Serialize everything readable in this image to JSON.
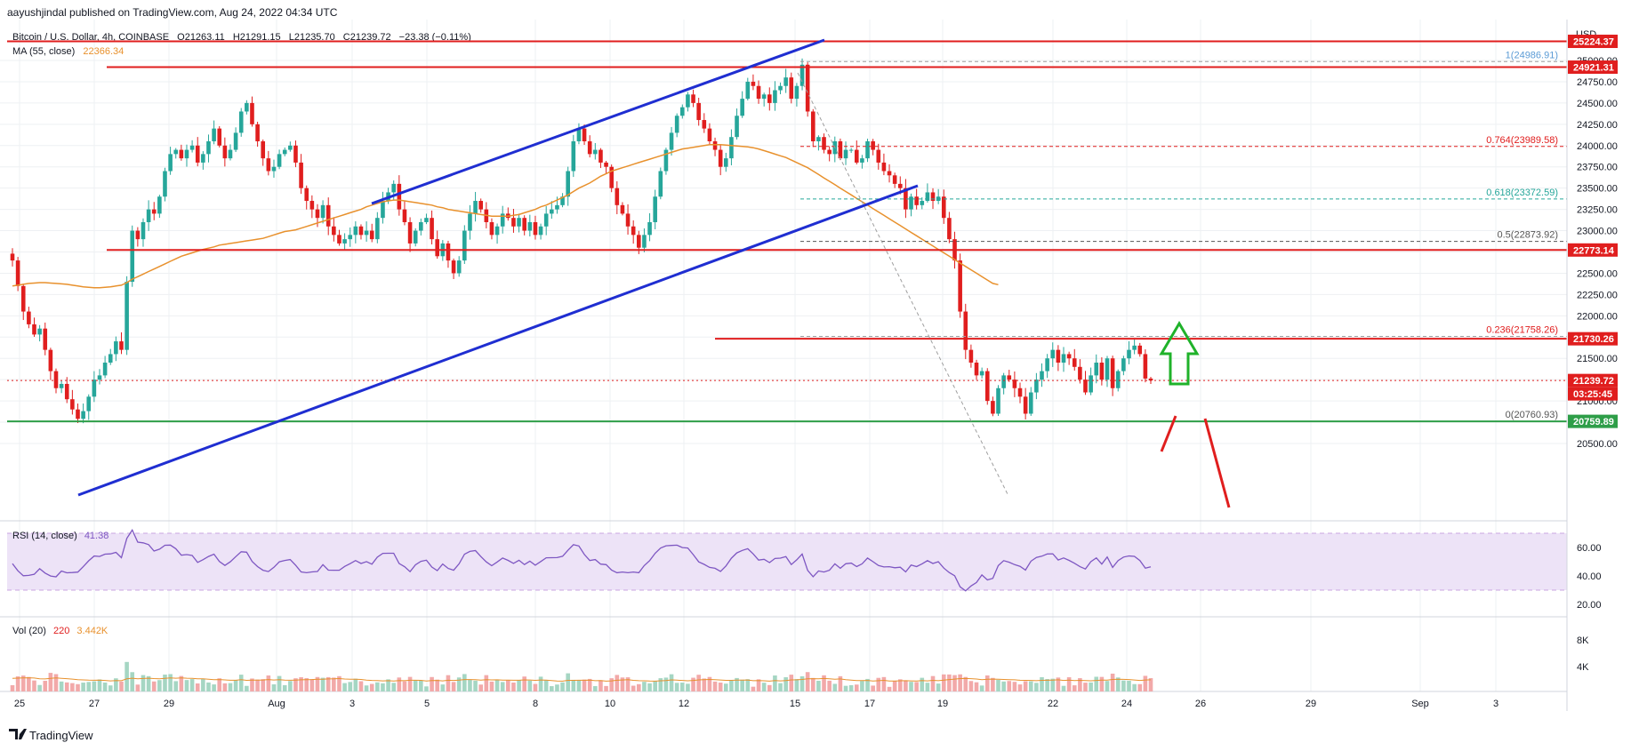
{
  "header": {
    "published_by": "aayushjindal published on TradingView.com, Aug 24, 2022 04:34 UTC",
    "symbol_line": "Bitcoin / U.S. Dollar, 4h, COINBASE",
    "ohlc": {
      "o": "O21263.11",
      "h": "H21291.15",
      "l": "L21235.70",
      "c": "C21239.72",
      "chg": "−23.38 (−0.11%)"
    },
    "ma_label": "MA (55, close)",
    "ma_value": "22366.34"
  },
  "footer": {
    "brand": "TradingView"
  },
  "price_axis": {
    "currency": "USD",
    "ticks": [
      "25000.00",
      "24750.00",
      "24500.00",
      "24250.00",
      "24000.00",
      "23750.00",
      "23500.00",
      "23250.00",
      "23000.00",
      "22750.00",
      "22500.00",
      "22250.00",
      "22000.00",
      "21750.00",
      "21500.00",
      "21250.00",
      "21000.00",
      "20750.00",
      "20500.00"
    ],
    "tags": [
      {
        "label": "25224.37",
        "color": "#e01e1e"
      },
      {
        "label": "24921.31",
        "color": "#e01e1e"
      },
      {
        "label": "22773.14",
        "color": "#e01e1e"
      },
      {
        "label": "21730.26",
        "color": "#e01e1e"
      },
      {
        "label": "21239.72",
        "color": "#e01e1e"
      },
      {
        "label": "03:25:45",
        "color": "#e01e1e"
      },
      {
        "label": "20759.89",
        "color": "#2e9e48"
      }
    ]
  },
  "date_axis": [
    "25",
    "27",
    "29",
    "Aug",
    "3",
    "5",
    "8",
    "10",
    "12",
    "15",
    "17",
    "19",
    "22",
    "24",
    "26",
    "29",
    "Sep",
    "3"
  ],
  "fib_labels": [
    {
      "text": "1(24986.91)",
      "color": "#5b9bd5"
    },
    {
      "text": "0.764(23989.58)",
      "color": "#e01e1e"
    },
    {
      "text": "0.618(23372.59)",
      "color": "#26a69a"
    },
    {
      "text": "0.5(22873.92)",
      "color": "#555555"
    },
    {
      "text": "0.236(21758.26)",
      "color": "#e01e1e"
    },
    {
      "text": "0(20760.93)",
      "color": "#555555"
    }
  ],
  "rsi": {
    "label": "RSI (14, close)",
    "value": "41.38",
    "ticks": [
      "60.00",
      "40.00",
      "20.00"
    ]
  },
  "volume": {
    "label": "Vol (20)",
    "value1": "220",
    "value2": "3.442K",
    "ticks": [
      "8K",
      "4K"
    ]
  },
  "colors": {
    "up": "#26a69a",
    "down": "#e01e1e",
    "ma": "#e8912d",
    "channel": "#1f2ed1",
    "support": "#2e9e48",
    "rsi_line": "#7e57c2",
    "rsi_fill": "#ede3f7",
    "arrow_up": "#1fb22a"
  },
  "chart_data": {
    "type": "candlestick",
    "timeframe": "4h",
    "ylim": [
      20400,
      25280
    ],
    "closes": [
      22650,
      22350,
      22050,
      21900,
      21780,
      21850,
      21600,
      21350,
      21150,
      21200,
      21020,
      20900,
      20790,
      20880,
      21050,
      21250,
      21300,
      21450,
      21550,
      21700,
      21600,
      22400,
      23000,
      22900,
      23100,
      23250,
      23200,
      23400,
      23700,
      23900,
      23950,
      23850,
      23950,
      24000,
      23800,
      23900,
      24050,
      24200,
      24000,
      23850,
      23950,
      24150,
      24400,
      24500,
      24250,
      24050,
      23850,
      23700,
      23750,
      23900,
      23950,
      24000,
      23800,
      23500,
      23350,
      23250,
      23150,
      23300,
      23050,
      22950,
      22850,
      22900,
      22950,
      23050,
      22950,
      23000,
      22900,
      23150,
      23350,
      23450,
      23550,
      23250,
      23100,
      22850,
      23000,
      23100,
      23150,
      22900,
      22700,
      22850,
      22650,
      22500,
      22650,
      23000,
      23200,
      23350,
      23250,
      23100,
      22950,
      23050,
      23200,
      23150,
      23050,
      23150,
      23000,
      23100,
      22950,
      23050,
      23200,
      23250,
      23300,
      23400,
      23700,
      24050,
      24200,
      24050,
      23900,
      23950,
      23800,
      23750,
      23500,
      23300,
      23200,
      23050,
      22950,
      22800,
      22950,
      23100,
      23400,
      23700,
      23950,
      24150,
      24350,
      24450,
      24600,
      24500,
      24300,
      24200,
      24050,
      23950,
      23750,
      23850,
      24100,
      24350,
      24550,
      24750,
      24700,
      24550,
      24600,
      24500,
      24650,
      24700,
      24800,
      24550,
      24700,
      24950,
      24400,
      24050,
      24100,
      23950,
      23900,
      24050,
      23850,
      23950,
      23950,
      23800,
      23850,
      24050,
      23950,
      23800,
      23700,
      23650,
      23550,
      23500,
      23250,
      23400,
      23300,
      23350,
      23450,
      23350,
      23400,
      23150,
      22900,
      22650,
      22050,
      21600,
      21450,
      21300,
      21350,
      21000,
      20850,
      21150,
      21300,
      21250,
      21150,
      21050,
      20850,
      21100,
      21250,
      21350,
      21500,
      21600,
      21450,
      21550,
      21500,
      21400,
      21250,
      21100,
      21300,
      21450,
      21250,
      21500,
      21150,
      21350,
      21500,
      21600,
      21650,
      21550,
      21263,
      21240
    ],
    "ma55": [
      22350,
      22360,
      22370,
      22380,
      22385,
      22390,
      22390,
      22385,
      22380,
      22375,
      22370,
      22360,
      22350,
      22340,
      22335,
      22330,
      22330,
      22335,
      22340,
      22350,
      22360,
      22390,
      22430,
      22460,
      22490,
      22520,
      22550,
      22580,
      22610,
      22640,
      22670,
      22700,
      22720,
      22740,
      22760,
      22780,
      22795,
      22810,
      22830,
      22840,
      22850,
      22860,
      22870,
      22880,
      22890,
      22900,
      22910,
      22930,
      22950,
      22970,
      22990,
      23000,
      23010,
      23030,
      23050,
      23070,
      23090,
      23110,
      23130,
      23150,
      23170,
      23190,
      23210,
      23230,
      23250,
      23280,
      23300,
      23320,
      23340,
      23350,
      23360,
      23360,
      23350,
      23340,
      23330,
      23320,
      23310,
      23300,
      23280,
      23270,
      23250,
      23240,
      23230,
      23220,
      23210,
      23200,
      23190,
      23180,
      23170,
      23170,
      23170,
      23170,
      23180,
      23190,
      23210,
      23230,
      23250,
      23280,
      23300,
      23330,
      23360,
      23390,
      23420,
      23460,
      23500,
      23530,
      23560,
      23600,
      23640,
      23670,
      23700,
      23720,
      23740,
      23760,
      23780,
      23800,
      23820,
      23840,
      23860,
      23880,
      23900,
      23920,
      23940,
      23960,
      23970,
      23980,
      23990,
      24000,
      24010,
      24010,
      24010,
      24005,
      24000,
      23995,
      23990,
      23985,
      23975,
      23960,
      23940,
      23920,
      23900,
      23880,
      23860,
      23830,
      23800,
      23770,
      23740,
      23700,
      23660,
      23620,
      23580,
      23540,
      23500,
      23460,
      23420,
      23380,
      23340,
      23300,
      23260,
      23220,
      23180,
      23140,
      23100,
      23060,
      23020,
      22980,
      22940,
      22900,
      22860,
      22820,
      22780,
      22740,
      22700,
      22660,
      22620,
      22580,
      22540,
      22500,
      22460,
      22420,
      22380,
      22366
    ]
  }
}
